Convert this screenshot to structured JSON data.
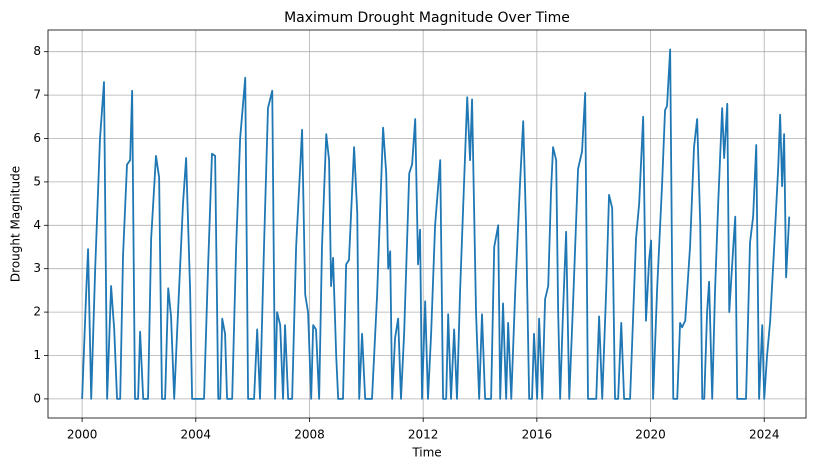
{
  "chart_data": {
    "type": "line",
    "title": "Maximum Drought Magnitude Over Time",
    "xlabel": "Time",
    "ylabel": "Drought Magnitude",
    "color": "#1f77b4",
    "grid": true,
    "xlim": [
      1998.8,
      2025.47
    ],
    "xticks": [
      2000,
      2004,
      2008,
      2012,
      2016,
      2020,
      2024
    ],
    "ylim": [
      -0.44,
      8.5
    ],
    "yticks": [
      0,
      1,
      2,
      3,
      4,
      5,
      6,
      7,
      8
    ],
    "x": [
      2000.0,
      2000.14,
      2000.21,
      2000.32,
      2000.46,
      2000.63,
      2000.77,
      2000.88,
      2001.02,
      2001.13,
      2001.23,
      2001.34,
      2001.44,
      2001.58,
      2001.69,
      2001.76,
      2001.86,
      2001.97,
      2002.04,
      2002.15,
      2002.32,
      2002.43,
      2002.6,
      2002.71,
      2002.81,
      2002.92,
      2003.03,
      2003.13,
      2003.24,
      2003.34,
      2003.55,
      2003.66,
      2003.8,
      2003.87,
      2004.29,
      2004.43,
      2004.57,
      2004.68,
      2004.79,
      2004.86,
      2004.93,
      2005.03,
      2005.1,
      2005.28,
      2005.42,
      2005.56,
      2005.74,
      2005.84,
      2006.05,
      2006.16,
      2006.26,
      2006.4,
      2006.54,
      2006.69,
      2006.79,
      2006.86,
      2006.97,
      2007.07,
      2007.14,
      2007.25,
      2007.39,
      2007.53,
      2007.74,
      2007.85,
      2007.95,
      2008.06,
      2008.13,
      2008.23,
      2008.34,
      2008.44,
      2008.59,
      2008.69,
      2008.76,
      2008.83,
      2008.94,
      2009.01,
      2009.18,
      2009.29,
      2009.39,
      2009.57,
      2009.68,
      2009.75,
      2009.85,
      2009.96,
      2010.2,
      2010.38,
      2010.59,
      2010.7,
      2010.77,
      2010.84,
      2010.91,
      2011.01,
      2011.12,
      2011.22,
      2011.33,
      2011.51,
      2011.61,
      2011.72,
      2011.82,
      2011.89,
      2011.96,
      2012.07,
      2012.17,
      2012.28,
      2012.42,
      2012.6,
      2012.7,
      2012.81,
      2012.88,
      2012.98,
      2013.09,
      2013.19,
      2013.3,
      2013.44,
      2013.55,
      2013.65,
      2013.72,
      2013.86,
      2013.97,
      2014.07,
      2014.18,
      2014.39,
      2014.5,
      2014.64,
      2014.71,
      2014.81,
      2014.92,
      2014.99,
      2015.1,
      2015.24,
      2015.41,
      2015.52,
      2015.62,
      2015.73,
      2015.83,
      2015.9,
      2016.01,
      2016.08,
      2016.19,
      2016.29,
      2016.4,
      2016.5,
      2016.57,
      2016.68,
      2016.75,
      2016.82,
      2016.92,
      2017.03,
      2017.14,
      2017.28,
      2017.45,
      2017.59,
      2017.7,
      2017.8,
      2018.09,
      2018.19,
      2018.3,
      2018.44,
      2018.54,
      2018.65,
      2018.75,
      2018.86,
      2018.97,
      2019.07,
      2019.28,
      2019.49,
      2019.6,
      2019.74,
      2019.84,
      2019.95,
      2020.02,
      2020.09,
      2020.23,
      2020.41,
      2020.51,
      2020.58,
      2020.69,
      2020.8,
      2020.94,
      2021.04,
      2021.11,
      2021.22,
      2021.39,
      2021.53,
      2021.64,
      2021.75,
      2021.82,
      2021.89,
      2021.99,
      2022.06,
      2022.17,
      2022.27,
      2022.38,
      2022.52,
      2022.59,
      2022.7,
      2022.77,
      2022.91,
      2022.98,
      2023.05,
      2023.36,
      2023.5,
      2023.61,
      2023.72,
      2023.82,
      2023.93,
      2024.0,
      2024.1,
      2024.21,
      2024.35,
      2024.49,
      2024.56,
      2024.63,
      2024.7,
      2024.77,
      2024.88
    ],
    "values": [
      0,
      2.4,
      3.45,
      0,
      3.0,
      6.0,
      7.3,
      0,
      2.6,
      1.6,
      0,
      0,
      3.3,
      5.4,
      5.5,
      7.1,
      0,
      0,
      1.55,
      0,
      0,
      3.7,
      5.6,
      5.1,
      0,
      0,
      2.55,
      1.9,
      0,
      1.5,
      4.5,
      5.55,
      2.5,
      0,
      0,
      3.0,
      5.65,
      5.6,
      0,
      0,
      1.85,
      1.5,
      0,
      0,
      3.5,
      6.0,
      7.4,
      0,
      0,
      1.6,
      0,
      3.5,
      6.7,
      7.1,
      0,
      2.0,
      1.7,
      0,
      1.7,
      0,
      0,
      3.5,
      6.2,
      2.4,
      2.0,
      0,
      1.7,
      1.6,
      0,
      3.5,
      6.1,
      5.5,
      2.6,
      3.25,
      1.0,
      0,
      0,
      3.1,
      3.2,
      5.8,
      4.3,
      0,
      1.5,
      0,
      0,
      2.4,
      6.25,
      5.2,
      3.0,
      3.4,
      0,
      1.4,
      1.85,
      0,
      1.5,
      5.2,
      5.4,
      6.45,
      3.1,
      3.9,
      0,
      2.25,
      0,
      1.5,
      4.0,
      5.5,
      0,
      0,
      1.95,
      0,
      1.6,
      0,
      2.5,
      5.0,
      6.95,
      5.5,
      6.9,
      2.0,
      0,
      1.95,
      0,
      0,
      3.5,
      4.0,
      0,
      2.2,
      0,
      1.75,
      0,
      2.5,
      5.0,
      6.4,
      4.0,
      0,
      0,
      1.5,
      0,
      1.85,
      0,
      2.3,
      2.6,
      4.8,
      5.8,
      5.5,
      2.0,
      0,
      2.0,
      3.85,
      0,
      2.3,
      5.3,
      5.7,
      7.05,
      0,
      0,
      1.9,
      0,
      2.5,
      4.7,
      4.4,
      0,
      0,
      1.75,
      0,
      0,
      3.7,
      4.5,
      6.5,
      1.8,
      3.2,
      3.65,
      0,
      2.5,
      5.0,
      6.65,
      6.75,
      8.05,
      0,
      0,
      1.75,
      1.65,
      1.8,
      3.5,
      5.8,
      6.45,
      4.0,
      0,
      0,
      2.0,
      2.7,
      0,
      2.5,
      4.5,
      6.7,
      5.55,
      6.8,
      2.0,
      3.5,
      4.2,
      0,
      0,
      3.6,
      4.2,
      5.85,
      0,
      1.7,
      0,
      1.0,
      1.8,
      3.5,
      5.3,
      6.55,
      4.9,
      6.1,
      2.8,
      4.2
    ]
  }
}
